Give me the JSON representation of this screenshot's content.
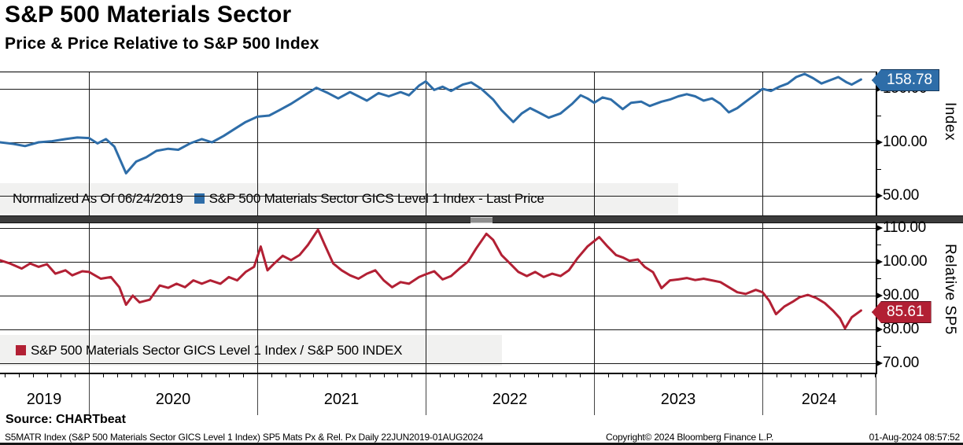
{
  "header": {
    "title": "S&P 500 Materials Sector",
    "subtitle": "Price & Price Relative to S&P 500 Index"
  },
  "colors": {
    "line_blue": "#2e6da8",
    "line_red": "#b22034",
    "legend_bg": "#f0f0ef",
    "separator": "#3c3c3c"
  },
  "top_panel": {
    "axis_caption": "Index",
    "ytick_labels": [
      "150.00",
      "100.00",
      "50.00"
    ],
    "last_price_badge": "158.78",
    "legend_note": "Normalized As Of 06/24/2019",
    "legend_series": "S&P 500 Materials Sector GICS Level 1 Index - Last Price"
  },
  "bottom_panel": {
    "axis_caption": "Relative SP5",
    "ytick_labels": [
      "110.00",
      "100.00",
      "90.00",
      "80.00",
      "70.00"
    ],
    "last_price_badge": "85.61",
    "legend_series": "S&P 500 Materials Sector GICS Level 1 Index / S&P 500 INDEX"
  },
  "x_axis": {
    "year_labels": [
      "2019",
      "2020",
      "2021",
      "2022",
      "2023",
      "2024"
    ]
  },
  "source_line": "Source: CHARTbeat",
  "footer": {
    "left": "S5MATR Index (S&P 500 Materials Sector GICS Level 1 Index) SP5 Mats Px & Rel. Px  Daily 22JUN2019-01AUG2024",
    "center": "Copyright© 2024 Bloomberg Finance L.P.",
    "right": "01-Aug-2024 08:57:52"
  },
  "chart_data": [
    {
      "type": "line",
      "panel": "top",
      "title": "S&P 500 Materials Sector GICS Level 1 Index - Last Price",
      "note": "Normalized As Of 06/24/2019",
      "ylabel": "Index",
      "ylim": [
        30,
        170
      ],
      "yticks": [
        50,
        100,
        150
      ],
      "x_range_dates": [
        "22JUN2019",
        "01AUG2024"
      ],
      "last_value": 158.78,
      "points": [
        [
          2019.47,
          100
        ],
        [
          2019.55,
          98.5
        ],
        [
          2019.62,
          96.5
        ],
        [
          2019.7,
          100
        ],
        [
          2019.78,
          101
        ],
        [
          2019.86,
          103
        ],
        [
          2019.93,
          104.5
        ],
        [
          2020.0,
          104
        ],
        [
          2020.05,
          99
        ],
        [
          2020.1,
          103
        ],
        [
          2020.15,
          96
        ],
        [
          2020.22,
          71
        ],
        [
          2020.28,
          82
        ],
        [
          2020.34,
          86
        ],
        [
          2020.4,
          92
        ],
        [
          2020.47,
          94
        ],
        [
          2020.53,
          93
        ],
        [
          2020.6,
          99
        ],
        [
          2020.67,
          103
        ],
        [
          2020.73,
          100
        ],
        [
          2020.8,
          106
        ],
        [
          2020.87,
          113
        ],
        [
          2020.93,
          119
        ],
        [
          2021.0,
          124
        ],
        [
          2021.07,
          125
        ],
        [
          2021.13,
          130
        ],
        [
          2021.2,
          136
        ],
        [
          2021.27,
          143
        ],
        [
          2021.35,
          151
        ],
        [
          2021.42,
          146
        ],
        [
          2021.48,
          141
        ],
        [
          2021.55,
          147
        ],
        [
          2021.6,
          143
        ],
        [
          2021.65,
          139
        ],
        [
          2021.72,
          146
        ],
        [
          2021.78,
          143
        ],
        [
          2021.85,
          147
        ],
        [
          2021.9,
          144
        ],
        [
          2021.96,
          153
        ],
        [
          2022.0,
          157
        ],
        [
          2022.05,
          149
        ],
        [
          2022.1,
          152
        ],
        [
          2022.15,
          148
        ],
        [
          2022.22,
          154
        ],
        [
          2022.27,
          156
        ],
        [
          2022.33,
          150
        ],
        [
          2022.4,
          140
        ],
        [
          2022.45,
          130
        ],
        [
          2022.52,
          119
        ],
        [
          2022.57,
          127
        ],
        [
          2022.62,
          132
        ],
        [
          2022.67,
          128
        ],
        [
          2022.73,
          123
        ],
        [
          2022.8,
          127
        ],
        [
          2022.87,
          136
        ],
        [
          2022.92,
          144
        ],
        [
          2022.96,
          141
        ],
        [
          2023.0,
          137
        ],
        [
          2023.05,
          142
        ],
        [
          2023.1,
          140
        ],
        [
          2023.17,
          131
        ],
        [
          2023.22,
          137
        ],
        [
          2023.28,
          138
        ],
        [
          2023.33,
          134
        ],
        [
          2023.4,
          138
        ],
        [
          2023.45,
          140
        ],
        [
          2023.5,
          143
        ],
        [
          2023.55,
          145
        ],
        [
          2023.6,
          143
        ],
        [
          2023.65,
          139
        ],
        [
          2023.7,
          141
        ],
        [
          2023.75,
          136
        ],
        [
          2023.8,
          128
        ],
        [
          2023.85,
          132
        ],
        [
          2023.9,
          138
        ],
        [
          2023.96,
          145
        ],
        [
          2024.0,
          150
        ],
        [
          2024.05,
          148
        ],
        [
          2024.1,
          152
        ],
        [
          2024.15,
          155
        ],
        [
          2024.2,
          161
        ],
        [
          2024.25,
          164
        ],
        [
          2024.3,
          160
        ],
        [
          2024.35,
          155
        ],
        [
          2024.4,
          158
        ],
        [
          2024.45,
          161
        ],
        [
          2024.5,
          156
        ],
        [
          2024.53,
          154
        ],
        [
          2024.585,
          158.78
        ]
      ]
    },
    {
      "type": "line",
      "panel": "bottom",
      "title": "S&P 500 Materials Sector GICS Level 1 Index / S&P 500 INDEX",
      "ylabel": "Relative SP5",
      "ylim": [
        67,
        113
      ],
      "yticks": [
        70,
        80,
        90,
        100,
        110
      ],
      "x_range_dates": [
        "22JUN2019",
        "01AUG2024"
      ],
      "last_value": 85.61,
      "points": [
        [
          2019.47,
          100.5
        ],
        [
          2019.53,
          99.5
        ],
        [
          2019.6,
          98
        ],
        [
          2019.65,
          99.5
        ],
        [
          2019.7,
          98.5
        ],
        [
          2019.75,
          99.3
        ],
        [
          2019.8,
          96.5
        ],
        [
          2019.86,
          97.5
        ],
        [
          2019.9,
          96
        ],
        [
          2019.96,
          97.2
        ],
        [
          2020.0,
          97
        ],
        [
          2020.07,
          95
        ],
        [
          2020.13,
          95.5
        ],
        [
          2020.18,
          92.5
        ],
        [
          2020.22,
          87.3
        ],
        [
          2020.26,
          90
        ],
        [
          2020.3,
          88
        ],
        [
          2020.36,
          88.8
        ],
        [
          2020.42,
          93
        ],
        [
          2020.47,
          92.3
        ],
        [
          2020.52,
          93.5
        ],
        [
          2020.57,
          92.5
        ],
        [
          2020.62,
          94.5
        ],
        [
          2020.67,
          93.5
        ],
        [
          2020.72,
          94.5
        ],
        [
          2020.78,
          93.5
        ],
        [
          2020.83,
          95.5
        ],
        [
          2020.88,
          94.5
        ],
        [
          2020.93,
          97
        ],
        [
          2020.98,
          98.5
        ],
        [
          2021.02,
          104.5
        ],
        [
          2021.06,
          97.5
        ],
        [
          2021.1,
          99.5
        ],
        [
          2021.15,
          101.8
        ],
        [
          2021.2,
          100.5
        ],
        [
          2021.25,
          102
        ],
        [
          2021.3,
          105
        ],
        [
          2021.36,
          109.5
        ],
        [
          2021.4,
          105
        ],
        [
          2021.45,
          99.5
        ],
        [
          2021.5,
          97.5
        ],
        [
          2021.55,
          96
        ],
        [
          2021.6,
          95
        ],
        [
          2021.65,
          96.5
        ],
        [
          2021.7,
          97.5
        ],
        [
          2021.75,
          94.5
        ],
        [
          2021.8,
          92.5
        ],
        [
          2021.85,
          94
        ],
        [
          2021.9,
          93.5
        ],
        [
          2021.96,
          95.5
        ],
        [
          2022.0,
          96.3
        ],
        [
          2022.05,
          97.2
        ],
        [
          2022.1,
          94.8
        ],
        [
          2022.15,
          95.8
        ],
        [
          2022.2,
          98
        ],
        [
          2022.25,
          100
        ],
        [
          2022.3,
          104
        ],
        [
          2022.36,
          108.3
        ],
        [
          2022.4,
          106.5
        ],
        [
          2022.45,
          102
        ],
        [
          2022.5,
          99.5
        ],
        [
          2022.55,
          97
        ],
        [
          2022.6,
          95.8
        ],
        [
          2022.65,
          97
        ],
        [
          2022.7,
          95.5
        ],
        [
          2022.75,
          96.5
        ],
        [
          2022.8,
          95.8
        ],
        [
          2022.85,
          97.5
        ],
        [
          2022.9,
          101
        ],
        [
          2022.96,
          104.5
        ],
        [
          2023.03,
          107.3
        ],
        [
          2023.08,
          104.5
        ],
        [
          2023.13,
          102
        ],
        [
          2023.17,
          101.3
        ],
        [
          2023.21,
          100.3
        ],
        [
          2023.26,
          100.7
        ],
        [
          2023.3,
          98.5
        ],
        [
          2023.35,
          96.9
        ],
        [
          2023.4,
          92.2
        ],
        [
          2023.45,
          94.5
        ],
        [
          2023.5,
          94.8
        ],
        [
          2023.55,
          95.2
        ],
        [
          2023.6,
          94.6
        ],
        [
          2023.65,
          95
        ],
        [
          2023.7,
          94.5
        ],
        [
          2023.75,
          94
        ],
        [
          2023.8,
          92.5
        ],
        [
          2023.85,
          91
        ],
        [
          2023.9,
          90.5
        ],
        [
          2023.96,
          91.7
        ],
        [
          2024.0,
          91
        ],
        [
          2024.04,
          88.5
        ],
        [
          2024.08,
          84.5
        ],
        [
          2024.13,
          86.8
        ],
        [
          2024.18,
          88.2
        ],
        [
          2024.22,
          89.5
        ],
        [
          2024.27,
          90.2
        ],
        [
          2024.32,
          89.3
        ],
        [
          2024.37,
          87.8
        ],
        [
          2024.42,
          85.5
        ],
        [
          2024.46,
          83.3
        ],
        [
          2024.49,
          80.3
        ],
        [
          2024.53,
          83.6
        ],
        [
          2024.585,
          85.61
        ]
      ]
    }
  ]
}
